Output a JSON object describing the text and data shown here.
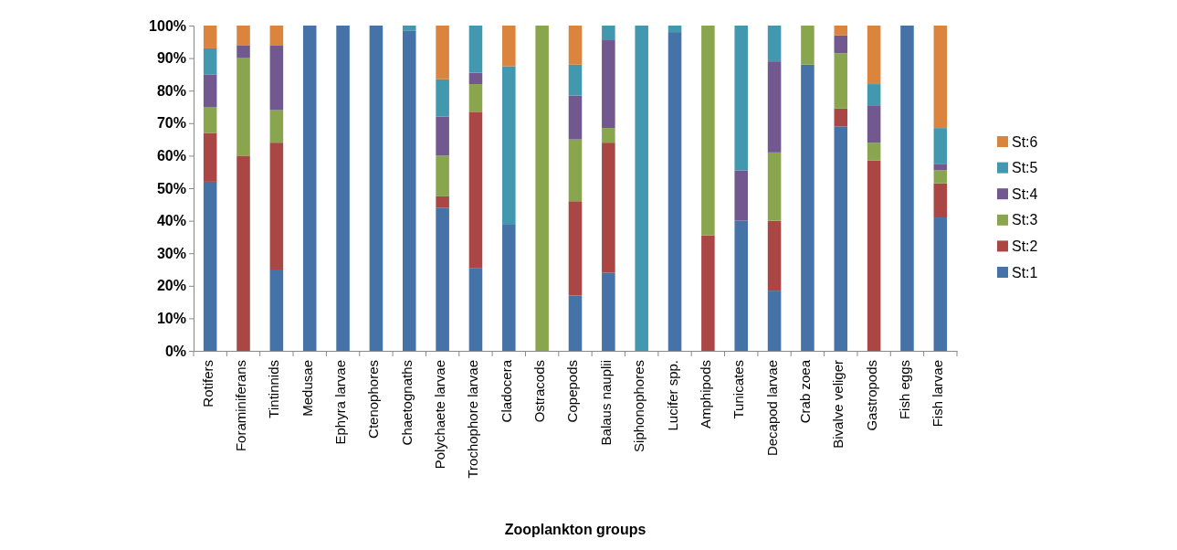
{
  "chart_data": {
    "type": "bar",
    "stacked": true,
    "xlabel": "Zooplankton groups",
    "legend": "right",
    "grid": false,
    "categories": [
      "Rotifers",
      "Foraminiferans",
      "Tintinnids",
      "Medusae",
      "Ephyra larvae",
      "Ctenophores",
      "Chaetognaths",
      "Polychaete larvae",
      "Trochophore larvae",
      "Cladocera",
      "Ostracods",
      "Copepods",
      "Balaus nauplii",
      "Siphonophores",
      "Lucifer spp.",
      "Amphipods",
      "Tunicates",
      "Decapod larvae",
      "Crab zoea",
      "Bivalve veliger",
      "Gastropods",
      "Fish eggs",
      "Fish larvae"
    ],
    "ylim": [
      0,
      100
    ],
    "yticks": [
      {
        "value": 0,
        "label": "0%"
      },
      {
        "value": 10,
        "label": "10%"
      },
      {
        "value": 20,
        "label": "20%"
      },
      {
        "value": 30,
        "label": "30%"
      },
      {
        "value": 40,
        "label": "40%"
      },
      {
        "value": 50,
        "label": "50%"
      },
      {
        "value": 60,
        "label": "60%"
      },
      {
        "value": 70,
        "label": "70%"
      },
      {
        "value": 80,
        "label": "80%"
      },
      {
        "value": 90,
        "label": "90%"
      },
      {
        "value": 100,
        "label": "100%"
      }
    ],
    "series": [
      {
        "name": "St:1",
        "color": "#4572a7",
        "values": [
          52,
          0,
          25,
          100,
          100,
          100,
          98.5,
          44,
          25.5,
          39,
          0,
          17,
          24,
          0,
          98,
          0,
          40,
          18.5,
          88,
          69,
          0,
          100,
          41
        ]
      },
      {
        "name": "St:2",
        "color": "#aa4643",
        "values": [
          15,
          60,
          39,
          0,
          0,
          0,
          0,
          3.5,
          48,
          0,
          0,
          29,
          40,
          0,
          0,
          35.5,
          0,
          21.5,
          0,
          5.5,
          58.5,
          0,
          10.5
        ]
      },
      {
        "name": "St:3",
        "color": "#89a54e",
        "values": [
          8,
          30,
          10,
          0,
          0,
          0,
          0,
          12.5,
          8.5,
          0,
          100,
          19,
          4.5,
          0,
          0,
          64.5,
          0,
          21,
          12,
          17,
          5.5,
          0,
          4
        ]
      },
      {
        "name": "St:4",
        "color": "#71588f",
        "values": [
          10,
          4,
          20,
          0,
          0,
          0,
          0,
          12,
          3.5,
          0,
          0,
          13.5,
          27,
          0,
          0,
          0,
          15.5,
          28,
          0,
          5.5,
          11.5,
          0,
          2
        ]
      },
      {
        "name": "St:5",
        "color": "#4198af",
        "values": [
          8,
          0,
          0,
          0,
          0,
          0,
          1.5,
          11.5,
          14.5,
          48.5,
          0,
          9.5,
          4.5,
          100,
          2,
          0,
          44.5,
          11,
          0,
          0,
          6.5,
          0,
          11
        ]
      },
      {
        "name": "St:6",
        "color": "#db843d",
        "values": [
          7,
          6,
          6,
          0,
          0,
          0,
          0,
          16.5,
          0,
          12.5,
          0,
          12,
          0,
          0,
          0,
          0,
          0,
          0,
          0,
          3,
          18,
          0,
          31.5
        ]
      }
    ]
  }
}
